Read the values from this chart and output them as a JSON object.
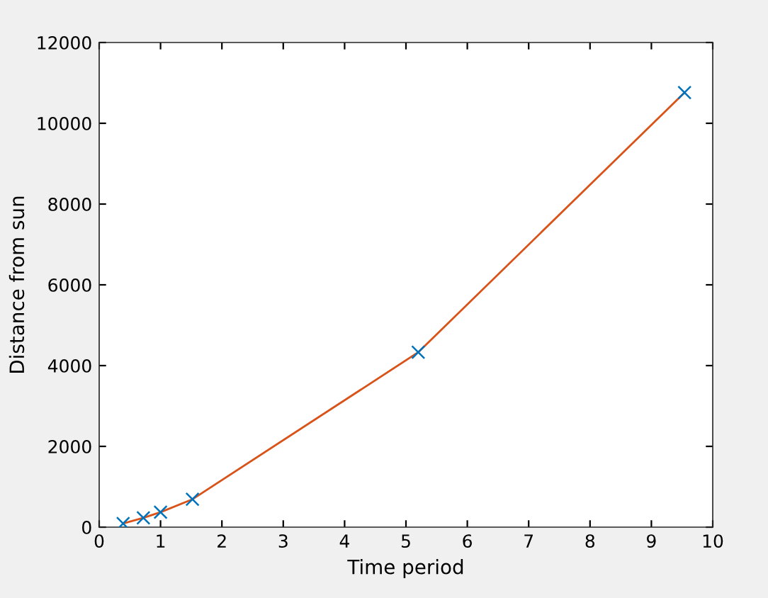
{
  "chart_data": {
    "type": "line",
    "xlabel": "Time period",
    "ylabel": "Distance from sun",
    "x": [
      0.39,
      0.72,
      1.0,
      1.52,
      5.2,
      9.54
    ],
    "series": [
      {
        "type": "scatter",
        "color": "#0072bd",
        "marker": "cross",
        "values": [
          90,
          230,
          370,
          690,
          4330,
          10760
        ]
      },
      {
        "color": "#d95319",
        "marker": "none",
        "line_style": "solid",
        "values": [
          90,
          230,
          370,
          690,
          4330,
          10760
        ]
      }
    ],
    "xlim": [
      0,
      10
    ],
    "xticks": [
      0,
      1,
      2,
      3,
      4,
      5,
      6,
      7,
      8,
      9,
      10
    ],
    "ylim": [
      0,
      12000
    ],
    "yticks": [
      0,
      2000,
      4000,
      6000,
      8000,
      10000,
      12000
    ],
    "grid": false,
    "legend": false
  }
}
